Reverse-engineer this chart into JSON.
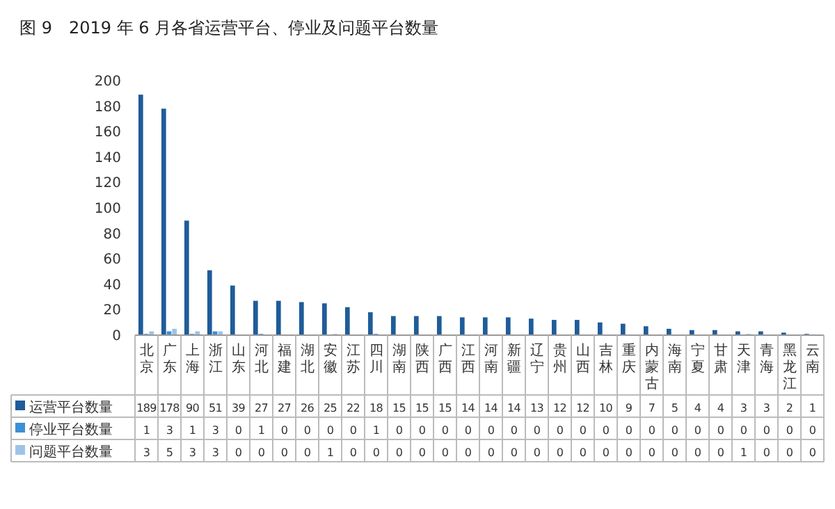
{
  "chart_data": {
    "type": "bar",
    "title": "图 9　2019 年 6 月各省运营平台、停业及问题平台数量",
    "categories": [
      "北京",
      "广东",
      "上海",
      "浙江",
      "山东",
      "河北",
      "福建",
      "湖北",
      "安徽",
      "江苏",
      "四川",
      "湖南",
      "陕西",
      "广西",
      "江西",
      "河南",
      "新疆",
      "辽宁",
      "贵州",
      "山西",
      "吉林",
      "重庆",
      "内蒙古",
      "海南",
      "宁夏",
      "甘肃",
      "天津",
      "青海",
      "黑龙江",
      "云南"
    ],
    "series": [
      {
        "name": "运营平台数量",
        "color": "#1f5c99",
        "values": [
          189,
          178,
          90,
          51,
          39,
          27,
          27,
          26,
          25,
          22,
          18,
          15,
          15,
          15,
          14,
          14,
          14,
          13,
          12,
          12,
          10,
          9,
          7,
          5,
          4,
          4,
          3,
          3,
          2,
          1
        ]
      },
      {
        "name": "停业平台数量",
        "color": "#3d8fd6",
        "values": [
          1,
          3,
          1,
          3,
          0,
          1,
          0,
          0,
          0,
          0,
          1,
          0,
          0,
          0,
          0,
          0,
          0,
          0,
          0,
          0,
          0,
          0,
          0,
          0,
          0,
          0,
          0,
          0,
          0,
          0
        ]
      },
      {
        "name": "问题平台数量",
        "color": "#9dc3e6",
        "values": [
          3,
          5,
          3,
          3,
          0,
          0,
          0,
          0,
          1,
          0,
          0,
          0,
          0,
          0,
          0,
          0,
          0,
          0,
          0,
          0,
          0,
          0,
          0,
          0,
          0,
          0,
          1,
          0,
          0,
          0
        ]
      }
    ],
    "ylim": [
      0,
      200
    ],
    "yticks": [
      0,
      20,
      40,
      60,
      80,
      100,
      120,
      140,
      160,
      180,
      200
    ],
    "data_labels": true,
    "legend": "bottom"
  }
}
